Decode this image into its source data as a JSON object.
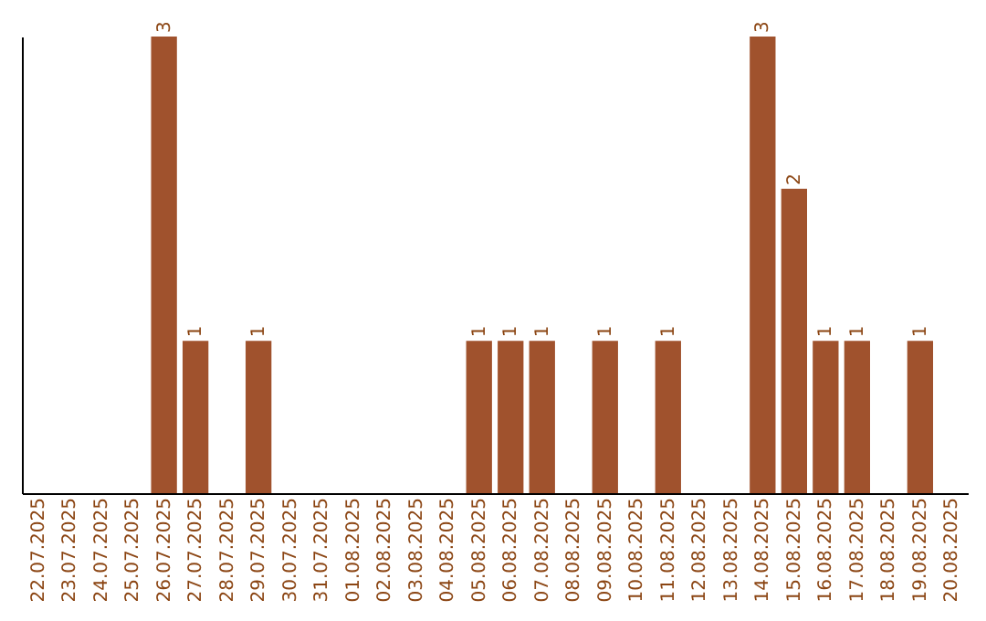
{
  "chart_data": {
    "type": "bar",
    "categories": [
      "22.07.2025",
      "23.07.2025",
      "24.07.2025",
      "25.07.2025",
      "26.07.2025",
      "27.07.2025",
      "28.07.2025",
      "29.07.2025",
      "30.07.2025",
      "31.07.2025",
      "01.08.2025",
      "02.08.2025",
      "03.08.2025",
      "04.08.2025",
      "05.08.2025",
      "06.08.2025",
      "07.08.2025",
      "08.08.2025",
      "09.08.2025",
      "10.08.2025",
      "11.08.2025",
      "12.08.2025",
      "13.08.2025",
      "14.08.2025",
      "15.08.2025",
      "16.08.2025",
      "17.08.2025",
      "18.08.2025",
      "19.08.2025",
      "20.08.2025"
    ],
    "values": [
      null,
      null,
      null,
      null,
      3,
      1,
      null,
      1,
      null,
      null,
      null,
      null,
      null,
      null,
      1,
      1,
      1,
      null,
      1,
      null,
      1,
      null,
      null,
      3,
      2,
      1,
      1,
      null,
      1,
      null
    ],
    "color": "#a0522d",
    "data_labels": true
  }
}
